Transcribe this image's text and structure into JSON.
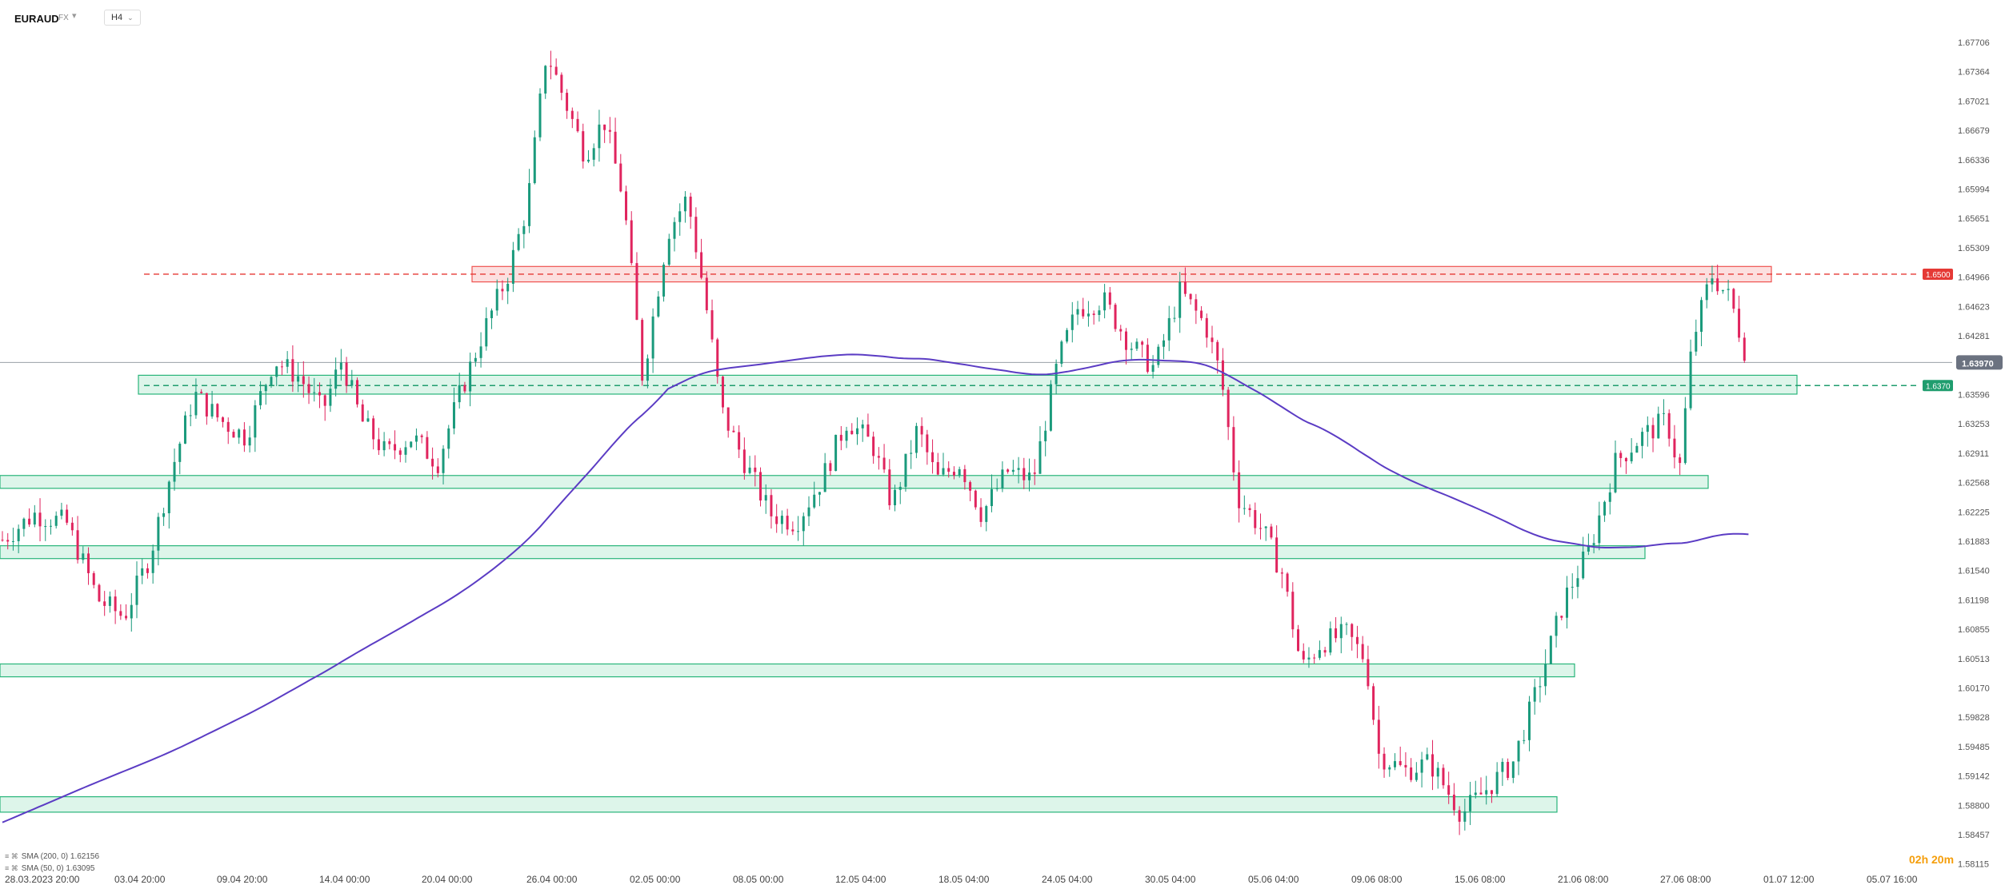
{
  "header": {
    "symbol": "EURAUD",
    "exchange": "FX",
    "timeframe": "H4"
  },
  "legend": {
    "sma200": "SMA (200, 0)  1.62156",
    "sma50": "SMA (50, 0)  1.63095"
  },
  "countdown": "02h 20m",
  "colors": {
    "bull": "#1a9a7c",
    "bear": "#e0245e",
    "sma50": "#16b27f",
    "sma200": "#5b3cc4",
    "zone_green_fill": "#d7f3e6",
    "zone_green_stroke": "#28b57a",
    "zone_red_fill": "#fbd9d9",
    "zone_red_stroke": "#ef5350",
    "price_badge": "#6b7280"
  },
  "chart_data": {
    "type": "candlestick",
    "symbol": "EURAUD",
    "timeframe": "H4",
    "ylim": [
      1.58,
      1.68
    ],
    "y_ticks": [
      "1.67706",
      "1.67364",
      "1.67021",
      "1.66679",
      "1.66336",
      "1.65994",
      "1.65651",
      "1.65309",
      "1.64966",
      "1.64623",
      "1.64281",
      "1.63596",
      "1.63253",
      "1.62911",
      "1.62568",
      "1.62225",
      "1.61883",
      "1.61540",
      "1.61198",
      "1.60855",
      "1.60513",
      "1.60170",
      "1.59828",
      "1.59485",
      "1.59142",
      "1.58800",
      "1.58457",
      "1.58115"
    ],
    "x_ticks": [
      "28.03.2023 20:00",
      "03.04 20:00",
      "09.04 20:00",
      "14.04 00:00",
      "20.04 00:00",
      "26.04 00:00",
      "02.05 00:00",
      "08.05 00:00",
      "12.05 04:00",
      "18.05 04:00",
      "24.05 04:00",
      "30.05 04:00",
      "05.06 04:00",
      "09.06 08:00",
      "15.06 08:00",
      "21.06 08:00",
      "27.06 08:00",
      "01.07 12:00",
      "05.07 16:00"
    ],
    "current_price": "1.63970",
    "levels": [
      {
        "label": "1.6500",
        "value": 1.65,
        "color": "red"
      },
      {
        "label": "1.6370",
        "value": 1.637,
        "color": "green"
      }
    ],
    "zones": [
      {
        "color": "red",
        "from": 1.6491,
        "to": 1.6509
      },
      {
        "color": "green",
        "from": 1.636,
        "to": 1.6382
      },
      {
        "color": "green",
        "from": 1.625,
        "to": 1.6265
      },
      {
        "color": "green",
        "from": 1.6168,
        "to": 1.6183
      },
      {
        "color": "green",
        "from": 1.603,
        "to": 1.6045
      },
      {
        "color": "green",
        "from": 1.5872,
        "to": 1.589
      }
    ],
    "series": [
      {
        "name": "SMA (200, 0)",
        "value": "1.62156"
      },
      {
        "name": "SMA (50, 0)",
        "value": "1.63095"
      }
    ],
    "price_path": [
      [
        0,
        1.619
      ],
      [
        25,
        1.622
      ],
      [
        50,
        1.621
      ],
      [
        75,
        1.612
      ],
      [
        95,
        1.61
      ],
      [
        115,
        1.617
      ],
      [
        132,
        1.627
      ],
      [
        150,
        1.636
      ],
      [
        170,
        1.633
      ],
      [
        190,
        1.631
      ],
      [
        212,
        1.64
      ],
      [
        232,
        1.638
      ],
      [
        250,
        1.634
      ],
      [
        265,
        1.64
      ],
      [
        280,
        1.633
      ],
      [
        300,
        1.629
      ],
      [
        320,
        1.631
      ],
      [
        340,
        1.628
      ],
      [
        355,
        1.635
      ],
      [
        375,
        1.643
      ],
      [
        395,
        1.65
      ],
      [
        410,
        1.658
      ],
      [
        425,
        1.676
      ],
      [
        440,
        1.67
      ],
      [
        455,
        1.664
      ],
      [
        470,
        1.668
      ],
      [
        485,
        1.659
      ],
      [
        500,
        1.638
      ],
      [
        520,
        1.655
      ],
      [
        535,
        1.659
      ],
      [
        548,
        1.648
      ],
      [
        562,
        1.634
      ],
      [
        580,
        1.628
      ],
      [
        600,
        1.622
      ],
      [
        620,
        1.621
      ],
      [
        640,
        1.626
      ],
      [
        660,
        1.633
      ],
      [
        680,
        1.63
      ],
      [
        695,
        1.623
      ],
      [
        715,
        1.632
      ],
      [
        730,
        1.626
      ],
      [
        748,
        1.628
      ],
      [
        765,
        1.622
      ],
      [
        785,
        1.627
      ],
      [
        805,
        1.626
      ],
      [
        825,
        1.64
      ],
      [
        840,
        1.646
      ],
      [
        860,
        1.647
      ],
      [
        880,
        1.642
      ],
      [
        900,
        1.639
      ],
      [
        920,
        1.648
      ],
      [
        940,
        1.644
      ],
      [
        952,
        1.638
      ],
      [
        965,
        1.624
      ],
      [
        985,
        1.62
      ],
      [
        1000,
        1.615
      ],
      [
        1015,
        1.604
      ],
      [
        1030,
        1.607
      ],
      [
        1050,
        1.608
      ],
      [
        1065,
        1.605
      ],
      [
        1075,
        1.594
      ],
      [
        1095,
        1.592
      ],
      [
        1115,
        1.593
      ],
      [
        1140,
        1.587
      ],
      [
        1160,
        1.59
      ],
      [
        1180,
        1.593
      ],
      [
        1200,
        1.602
      ],
      [
        1220,
        1.612
      ],
      [
        1240,
        1.618
      ],
      [
        1260,
        1.628
      ],
      [
        1280,
        1.631
      ],
      [
        1300,
        1.633
      ],
      [
        1310,
        1.627
      ],
      [
        1320,
        1.642
      ],
      [
        1335,
        1.65
      ],
      [
        1350,
        1.647
      ],
      [
        1365,
        1.639
      ]
    ]
  }
}
